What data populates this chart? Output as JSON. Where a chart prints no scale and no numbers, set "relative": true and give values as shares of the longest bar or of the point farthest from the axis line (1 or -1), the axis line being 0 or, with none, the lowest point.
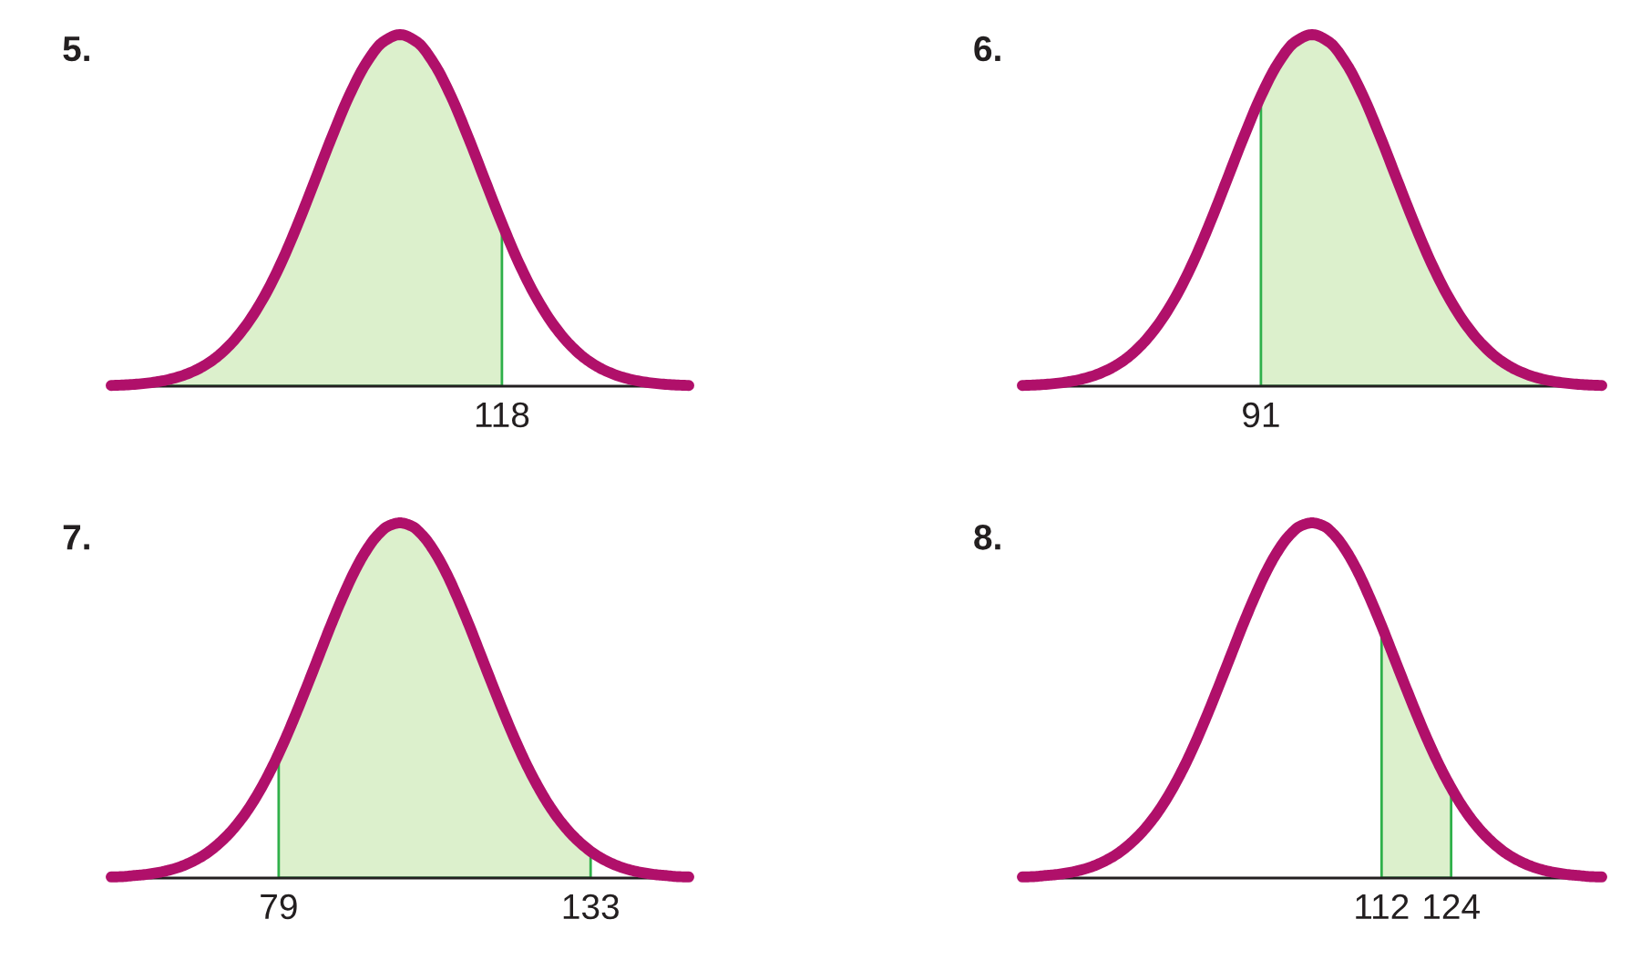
{
  "chart_data": [
    {
      "type": "line",
      "title": "5.",
      "relative": true,
      "categories": [
        null,
        null,
        null,
        null,
        null,
        null,
        null,
        null,
        null,
        null,
        null,
        null,
        null,
        null,
        null,
        null,
        null,
        null,
        null,
        null,
        null,
        null,
        null,
        null,
        null,
        null,
        null,
        null,
        null,
        null,
        null,
        null,
        null,
        null,
        null
      ],
      "series": [
        {
          "type": "area",
          "color": "#dcf0cc",
          "values": [
            0.002,
            0.004,
            0.008,
            0.015,
            0.027,
            0.046,
            0.075,
            0.118,
            0.177,
            0.254,
            0.35,
            0.463,
            0.586,
            0.71,
            0.825,
            0.918,
            0.979,
            1,
            0.979,
            0.918,
            0.825,
            0.71,
            0.586,
            0.463,
            null,
            null,
            null,
            null,
            null,
            null,
            null,
            null,
            null,
            null,
            null
          ]
        },
        {
          "color": "#b0106a",
          "values": [
            0.002,
            0.004,
            0.008,
            0.015,
            0.027,
            0.046,
            0.075,
            0.118,
            0.177,
            0.254,
            0.35,
            0.463,
            0.586,
            0.71,
            0.825,
            0.918,
            0.979,
            1,
            0.979,
            0.918,
            0.825,
            0.71,
            0.586,
            0.463,
            0.35,
            0.254,
            0.177,
            0.118,
            0.075,
            0.046,
            0.027,
            0.015,
            0.008,
            0.004,
            0.002
          ]
        }
      ],
      "annotations": [
        "118"
      ]
    },
    {
      "type": "line",
      "title": "6.",
      "relative": true,
      "categories": [
        null,
        null,
        null,
        null,
        null,
        null,
        null,
        null,
        null,
        null,
        null,
        null,
        null,
        null,
        null,
        null,
        null,
        null,
        null,
        null,
        null,
        null,
        null,
        null,
        null,
        null,
        null,
        null,
        null,
        null,
        null,
        null,
        null,
        null,
        null
      ],
      "series": [
        {
          "type": "area",
          "color": "#dcf0cc",
          "values": [
            null,
            null,
            null,
            null,
            null,
            null,
            null,
            null,
            null,
            null,
            null,
            null,
            null,
            null,
            0.825,
            0.918,
            0.979,
            1,
            0.979,
            0.918,
            0.825,
            0.71,
            0.586,
            0.463,
            0.35,
            0.254,
            0.177,
            0.118,
            0.075,
            0.046,
            0.027,
            0.015,
            0.008,
            0.004,
            0.002
          ]
        },
        {
          "color": "#b0106a",
          "values": [
            0.002,
            0.004,
            0.008,
            0.015,
            0.027,
            0.046,
            0.075,
            0.118,
            0.177,
            0.254,
            0.35,
            0.463,
            0.586,
            0.71,
            0.825,
            0.918,
            0.979,
            1,
            0.979,
            0.918,
            0.825,
            0.71,
            0.586,
            0.463,
            0.35,
            0.254,
            0.177,
            0.118,
            0.075,
            0.046,
            0.027,
            0.015,
            0.008,
            0.004,
            0.002
          ]
        }
      ],
      "annotations": [
        "91"
      ]
    },
    {
      "type": "line",
      "title": "7.",
      "relative": true,
      "xlim": [
        50,
        150
      ],
      "xticks": [
        79,
        133
      ],
      "series": [
        {
          "type": "area",
          "color": "#dcf0cc",
          "x": [
            79,
            80,
            82,
            84,
            86,
            88,
            90,
            92,
            94,
            96,
            98,
            100,
            102,
            104,
            106,
            108,
            110,
            112,
            114,
            116,
            118,
            120,
            122,
            124,
            126,
            128,
            130,
            132,
            133
          ],
          "values": [
            0.35,
            0.386,
            0.463,
            0.544,
            0.627,
            0.71,
            0.788,
            0.859,
            0.918,
            0.963,
            0.991,
            1,
            0.991,
            0.963,
            0.918,
            0.859,
            0.788,
            0.71,
            0.627,
            0.544,
            0.463,
            0.386,
            0.316,
            0.254,
            0.2,
            0.155,
            0.118,
            0.088,
            0.075
          ]
        },
        {
          "color": "#b0106a",
          "x": [
            50,
            52,
            54,
            56,
            58,
            60,
            62,
            64,
            66,
            68,
            70,
            72,
            74,
            76,
            78,
            80,
            82,
            84,
            86,
            88,
            90,
            92,
            94,
            96,
            98,
            100,
            102,
            104,
            106,
            108,
            110,
            112,
            114,
            116,
            118,
            120,
            122,
            124,
            126,
            128,
            130,
            132,
            134,
            136,
            138,
            140,
            142,
            144,
            146,
            148,
            150
          ],
          "values": [
            0.003,
            0.004,
            0.007,
            0.01,
            0.015,
            0.022,
            0.032,
            0.046,
            0.064,
            0.088,
            0.118,
            0.155,
            0.2,
            0.254,
            0.316,
            0.386,
            0.463,
            0.544,
            0.627,
            0.71,
            0.788,
            0.859,
            0.918,
            0.963,
            0.991,
            1,
            0.991,
            0.963,
            0.918,
            0.859,
            0.788,
            0.71,
            0.627,
            0.544,
            0.463,
            0.386,
            0.316,
            0.254,
            0.2,
            0.155,
            0.118,
            0.088,
            0.064,
            0.046,
            0.032,
            0.022,
            0.015,
            0.01,
            0.007,
            0.004,
            0.003
          ]
        }
      ]
    },
    {
      "type": "line",
      "title": "8.",
      "relative": true,
      "xlim": [
        50,
        150
      ],
      "xticks": [
        112,
        124
      ],
      "series": [
        {
          "type": "area",
          "color": "#dcf0cc",
          "x": [
            112,
            114,
            116,
            118,
            120,
            122,
            124
          ],
          "values": [
            0.71,
            0.627,
            0.544,
            0.463,
            0.386,
            0.316,
            0.254
          ]
        },
        {
          "color": "#b0106a",
          "x": [
            50,
            52,
            54,
            56,
            58,
            60,
            62,
            64,
            66,
            68,
            70,
            72,
            74,
            76,
            78,
            80,
            82,
            84,
            86,
            88,
            90,
            92,
            94,
            96,
            98,
            100,
            102,
            104,
            106,
            108,
            110,
            112,
            114,
            116,
            118,
            120,
            122,
            124,
            126,
            128,
            130,
            132,
            134,
            136,
            138,
            140,
            142,
            144,
            146,
            148,
            150
          ],
          "values": [
            0.003,
            0.004,
            0.007,
            0.01,
            0.015,
            0.022,
            0.032,
            0.046,
            0.064,
            0.088,
            0.118,
            0.155,
            0.2,
            0.254,
            0.316,
            0.386,
            0.463,
            0.544,
            0.627,
            0.71,
            0.788,
            0.859,
            0.918,
            0.963,
            0.991,
            1,
            0.991,
            0.963,
            0.918,
            0.859,
            0.788,
            0.71,
            0.627,
            0.544,
            0.463,
            0.386,
            0.316,
            0.254,
            0.2,
            0.155,
            0.118,
            0.088,
            0.064,
            0.046,
            0.032,
            0.022,
            0.015,
            0.01,
            0.007,
            0.004,
            0.003
          ]
        }
      ]
    }
  ]
}
